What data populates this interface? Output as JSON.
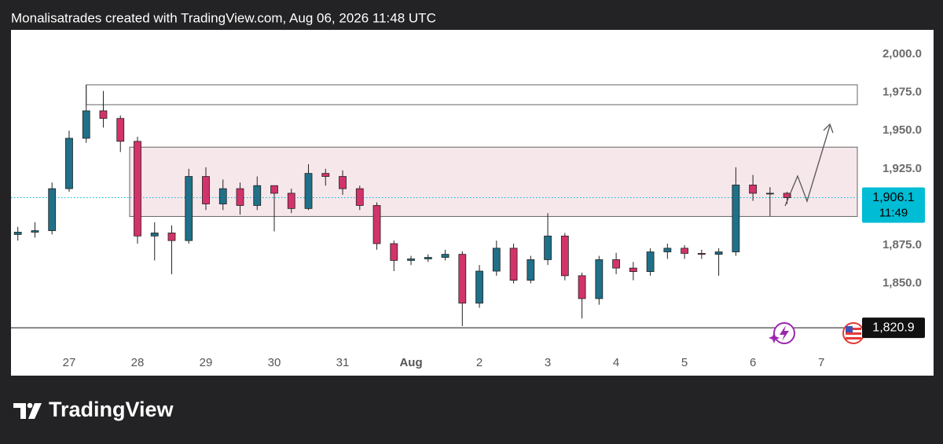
{
  "chart_data": {
    "type": "candlestick",
    "title": "Monalisatrades created with TradingView.com, Aug 06, 2026 11:48 UTC",
    "brand": "TradingView",
    "xlim": [
      -0.85,
      11.55
    ],
    "xticks": [
      {
        "value": 0,
        "label": "27"
      },
      {
        "value": 1,
        "label": "28"
      },
      {
        "value": 2,
        "label": "29"
      },
      {
        "value": 3,
        "label": "30"
      },
      {
        "value": 4,
        "label": "31"
      },
      {
        "value": 5,
        "label": "Aug"
      },
      {
        "value": 6,
        "label": "2"
      },
      {
        "value": 7,
        "label": "3"
      },
      {
        "value": 8,
        "label": "4"
      },
      {
        "value": 9,
        "label": "5"
      },
      {
        "value": 10,
        "label": "6"
      },
      {
        "value": 11,
        "label": "7"
      }
    ],
    "ylim": [
      1805,
      2016
    ],
    "yticks": [
      {
        "value": 1850,
        "label": "1,850.0"
      },
      {
        "value": 1875,
        "label": "1,875.0"
      },
      {
        "value": 1900,
        "label": "1,900.0"
      },
      {
        "value": 1925,
        "label": "1,925.0"
      },
      {
        "value": 1950,
        "label": "1,950.0"
      },
      {
        "value": 1975,
        "label": "1,975.0"
      },
      {
        "value": 2000,
        "label": "2,000.0"
      }
    ],
    "x": [
      -0.75,
      -0.5,
      -0.25,
      0,
      0.25,
      0.5,
      0.75,
      1,
      1.25,
      1.5,
      1.75,
      2,
      2.25,
      2.5,
      2.75,
      3,
      3.25,
      3.5,
      3.75,
      4,
      4.25,
      4.5,
      4.75,
      5,
      5.25,
      5.5,
      5.75,
      6,
      6.25,
      6.5,
      6.75,
      7,
      7.25,
      7.5,
      7.75,
      8,
      8.25,
      8.5,
      8.75,
      9,
      9.25,
      9.5,
      9.75,
      10,
      10.25,
      10.5
    ],
    "open": [
      1882,
      1883.5,
      1884.5,
      1912,
      1945,
      1963,
      1958,
      1943,
      1881,
      1883,
      1878,
      1920,
      1902,
      1912,
      1901,
      1914,
      1909,
      1899,
      1922,
      1920,
      1912,
      1901,
      1876,
      1865,
      1866,
      1867,
      1869,
      1837,
      1858,
      1873,
      1852,
      1865.5,
      1881,
      1855,
      1840,
      1865.5,
      1860,
      1857.7,
      1870.6,
      1873,
      1869.6,
      1869,
      1870.6,
      1914.4,
      1909,
      1909
    ],
    "high": [
      1887,
      1890,
      1916,
      1950,
      1980,
      1976,
      1960,
      1946,
      1890,
      1888,
      1925,
      1926,
      1918,
      1916,
      1920,
      1914,
      1912,
      1928,
      1925,
      1924,
      1914,
      1903,
      1878,
      1868,
      1869,
      1872,
      1871,
      1862,
      1878,
      1876,
      1868,
      1896,
      1883,
      1857,
      1868,
      1870,
      1864,
      1873,
      1876,
      1875,
      1872,
      1873,
      1926,
      1921,
      1913,
      1910
    ],
    "low": [
      1878,
      1880,
      1882,
      1910,
      1942,
      1952,
      1936,
      1876,
      1865,
      1856,
      1876,
      1898,
      1898,
      1895,
      1898,
      1884,
      1896,
      1898,
      1914,
      1908,
      1898,
      1872,
      1858,
      1862,
      1864,
      1865,
      1822,
      1834,
      1855,
      1850,
      1850,
      1862,
      1852,
      1827,
      1836,
      1856,
      1852,
      1855,
      1866,
      1866,
      1866,
      1855,
      1868,
      1904,
      1894,
      1902
    ],
    "close": [
      1883.5,
      1884.5,
      1912,
      1945,
      1963,
      1958,
      1943,
      1881,
      1883,
      1878,
      1920,
      1902,
      1912,
      1901,
      1914,
      1909,
      1899,
      1922,
      1920,
      1912,
      1901,
      1876,
      1865,
      1866,
      1867,
      1869,
      1837,
      1858,
      1873,
      1852,
      1865.5,
      1881,
      1855,
      1840,
      1865.5,
      1860,
      1857.7,
      1870.6,
      1873,
      1869.6,
      1869,
      1870.6,
      1914.4,
      1909,
      1909,
      1906.1
    ],
    "up_color": "#1f7088",
    "down_color": "#d2336a",
    "zones": [
      {
        "x0": 0.25,
        "from": 1967,
        "to": 1980,
        "color": "#ffffff"
      },
      {
        "x0": 0.885,
        "from": 1893.8,
        "to": 1939.2,
        "color": "#f6e7eb"
      }
    ],
    "last_price": {
      "value": 1906.1,
      "label": "1,906.1",
      "countdown": "11:49",
      "color": "#00bcd4"
    },
    "level": {
      "value": 1820.9,
      "label": "1,820.9",
      "color": "#111111"
    }
  }
}
